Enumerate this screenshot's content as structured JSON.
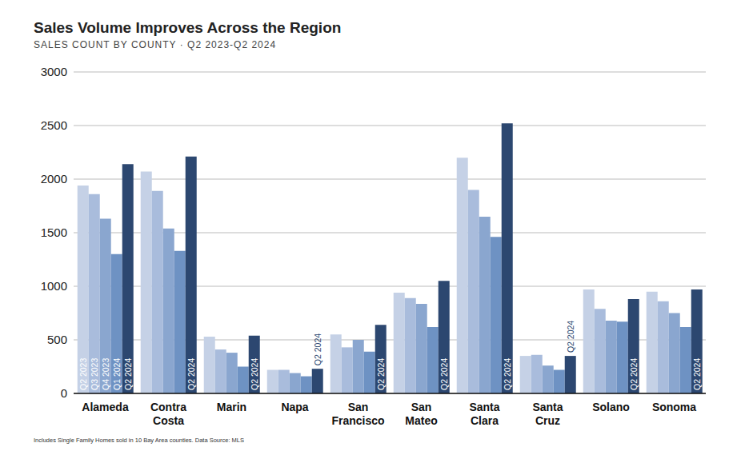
{
  "chart_data": {
    "type": "bar",
    "title": "Sales Volume Improves Across the Region",
    "subtitle": "SALES COUNT BY COUNTY · Q2 2023-Q2 2024",
    "footnote": "Includes Single Family Homes sold in 10 Bay Area counties. Data Source: MLS",
    "categories": [
      "Alameda",
      "Contra Costa",
      "Marin",
      "Napa",
      "San Francisco",
      "San Mateo",
      "Santa Clara",
      "Santa Cruz",
      "Solano",
      "Sonoma"
    ],
    "series": [
      {
        "name": "Q2 2023",
        "color": "#c5d1e6",
        "values": [
          1940,
          2070,
          530,
          220,
          550,
          940,
          2200,
          350,
          970,
          950
        ]
      },
      {
        "name": "Q3 2023",
        "color": "#a9bcdc",
        "values": [
          1860,
          1890,
          410,
          220,
          430,
          890,
          1900,
          360,
          790,
          860
        ]
      },
      {
        "name": "Q4 2023",
        "color": "#8aa6cf",
        "values": [
          1630,
          1540,
          380,
          190,
          500,
          835,
          1650,
          260,
          680,
          750
        ]
      },
      {
        "name": "Q1 2024",
        "color": "#6e92c3",
        "values": [
          1300,
          1330,
          250,
          160,
          390,
          620,
          1460,
          220,
          670,
          620
        ]
      },
      {
        "name": "Q2 2024",
        "color": "#2c4770",
        "values": [
          2140,
          2210,
          540,
          230,
          640,
          1050,
          2520,
          350,
          880,
          970
        ]
      }
    ],
    "ylim": [
      0,
      3000
    ],
    "yticks": [
      0,
      500,
      1000,
      1500,
      2000,
      2500,
      3000
    ],
    "grid": true
  }
}
